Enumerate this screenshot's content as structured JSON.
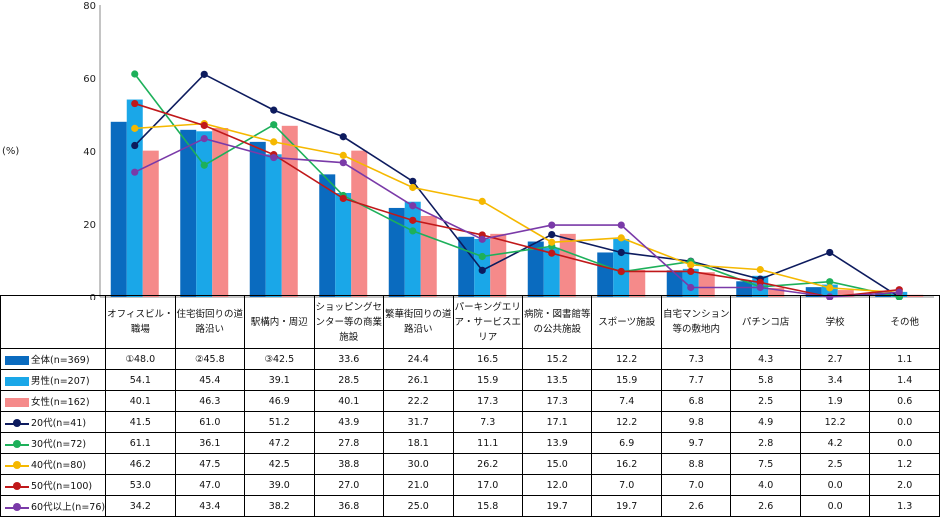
{
  "unit_label": "(%)",
  "chart_data": {
    "type": "bar",
    "categories": [
      "オフィスビル・\n職場",
      "住宅街回りの道\n路沿い",
      "駅構内・周辺",
      "ショッピングセ\nンター等の商業\n施設",
      "繁華街回りの道\n路沿い",
      "パーキングエリ\nア・サービスエ\nリア",
      "病院・図書館等\nの公共施設",
      "スポーツ施設",
      "自宅マンション\n等の敷地内",
      "パチンコ店",
      "学校",
      "その他"
    ],
    "ylim": [
      0,
      80
    ],
    "yticks": [
      "0",
      "20",
      "40",
      "60",
      "80"
    ],
    "bar_series": [
      {
        "name": "全体(n=369)",
        "color": "#0a6bbf",
        "values": [
          48.0,
          45.8,
          42.5,
          33.6,
          24.4,
          16.5,
          15.2,
          12.2,
          7.3,
          4.3,
          2.7,
          1.1
        ],
        "display": [
          "①48.0",
          "②45.8",
          "③42.5",
          "33.6",
          "24.4",
          "16.5",
          "15.2",
          "12.2",
          "7.3",
          "4.3",
          "2.7",
          "1.1"
        ]
      },
      {
        "name": "男性(n=207)",
        "color": "#1aa7e8",
        "values": [
          54.1,
          45.4,
          39.1,
          28.5,
          26.1,
          15.9,
          13.5,
          15.9,
          7.7,
          5.8,
          3.4,
          1.4
        ],
        "display": [
          "54.1",
          "45.4",
          "39.1",
          "28.5",
          "26.1",
          "15.9",
          "13.5",
          "15.9",
          "7.7",
          "5.8",
          "3.4",
          "1.4"
        ]
      },
      {
        "name": "女性(n=162)",
        "color": "#f58a8a",
        "values": [
          40.1,
          46.3,
          46.9,
          40.1,
          22.2,
          17.3,
          17.3,
          7.4,
          6.8,
          2.5,
          1.9,
          0.6
        ],
        "display": [
          "40.1",
          "46.3",
          "46.9",
          "40.1",
          "22.2",
          "17.3",
          "17.3",
          "7.4",
          "6.8",
          "2.5",
          "1.9",
          "0.6"
        ]
      }
    ],
    "line_series": [
      {
        "name": "20代(n=41)",
        "color": "#0d1b5e",
        "values": [
          41.5,
          61.0,
          51.2,
          43.9,
          31.7,
          7.3,
          17.1,
          12.2,
          9.8,
          4.9,
          12.2,
          0.0
        ],
        "display": [
          "41.5",
          "61.0",
          "51.2",
          "43.9",
          "31.7",
          "7.3",
          "17.1",
          "12.2",
          "9.8",
          "4.9",
          "12.2",
          "0.0"
        ]
      },
      {
        "name": "30代(n=72)",
        "color": "#1db05a",
        "values": [
          61.1,
          36.1,
          47.2,
          27.8,
          18.1,
          11.1,
          13.9,
          6.9,
          9.7,
          2.8,
          4.2,
          0.0
        ],
        "display": [
          "61.1",
          "36.1",
          "47.2",
          "27.8",
          "18.1",
          "11.1",
          "13.9",
          "6.9",
          "9.7",
          "2.8",
          "4.2",
          "0.0"
        ]
      },
      {
        "name": "40代(n=80)",
        "color": "#f5b800",
        "values": [
          46.2,
          47.5,
          42.5,
          38.8,
          30.0,
          26.2,
          15.0,
          16.2,
          8.8,
          7.5,
          2.5,
          1.2
        ],
        "display": [
          "46.2",
          "47.5",
          "42.5",
          "38.8",
          "30.0",
          "26.2",
          "15.0",
          "16.2",
          "8.8",
          "7.5",
          "2.5",
          "1.2"
        ]
      },
      {
        "name": "50代(n=100)",
        "color": "#c0181a",
        "values": [
          53.0,
          47.0,
          39.0,
          27.0,
          21.0,
          17.0,
          12.0,
          7.0,
          7.0,
          4.0,
          0.0,
          2.0
        ],
        "display": [
          "53.0",
          "47.0",
          "39.0",
          "27.0",
          "21.0",
          "17.0",
          "12.0",
          "7.0",
          "7.0",
          "4.0",
          "0.0",
          "2.0"
        ]
      },
      {
        "name": "60代以上(n=76)",
        "color": "#7a3aa8",
        "values": [
          34.2,
          43.4,
          38.2,
          36.8,
          25.0,
          15.8,
          19.7,
          19.7,
          2.6,
          2.6,
          0.0,
          1.3
        ],
        "display": [
          "34.2",
          "43.4",
          "38.2",
          "36.8",
          "25.0",
          "15.8",
          "19.7",
          "19.7",
          "2.6",
          "2.6",
          "0.0",
          "1.3"
        ]
      }
    ]
  }
}
